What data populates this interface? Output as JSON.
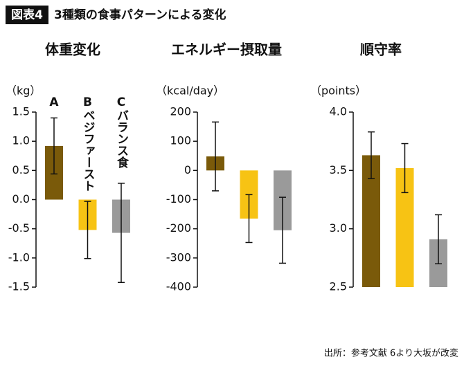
{
  "header": {
    "label": "図表4",
    "title": "3種類の食事パターンによる変化"
  },
  "footer": "出所：参考文献 6より大坂が改変",
  "chart_data": [
    {
      "type": "bar",
      "title": "体重変化",
      "y_label": "（kg）",
      "categories": [
        "A",
        "Bベジファースト",
        "Cバランス食"
      ],
      "colors": [
        "#7a5a0a",
        "#f7c314",
        "#9a9a9a"
      ],
      "values": [
        0.92,
        -0.52,
        -0.57
      ],
      "errors": [
        0.48,
        0.49,
        0.85
      ],
      "ylim": [
        -1.5,
        1.5
      ],
      "yticks": [
        1.5,
        {
          "value": 1,
          "label": "1.0"
        },
        0.5,
        {
          "value": 0,
          "label": "0.0"
        },
        -0.5,
        {
          "value": -1,
          "label": "-1.0"
        },
        -1.5
      ]
    },
    {
      "type": "bar",
      "title": "エネルギー摂取量",
      "y_label": "（kcal/day）",
      "colors": [
        "#7a5a0a",
        "#f7c314",
        "#9a9a9a"
      ],
      "values": [
        48,
        -165,
        -205
      ],
      "errors": [
        118,
        82,
        113
      ],
      "ylim": [
        -400,
        200
      ],
      "yticks": [
        200,
        100,
        0,
        -100,
        -200,
        -300,
        -400
      ]
    },
    {
      "type": "bar",
      "title": "順守率",
      "y_label": "（points）",
      "colors": [
        "#7a5a0a",
        "#f7c314",
        "#9a9a9a"
      ],
      "values": [
        3.63,
        3.52,
        2.91
      ],
      "errors": [
        0.2,
        0.21,
        0.21
      ],
      "ylim": [
        2.5,
        4.0
      ],
      "yticks": [
        {
          "value": 4,
          "label": "4.0"
        },
        3.5,
        {
          "value": 3,
          "label": "3.0"
        },
        2.5
      ]
    }
  ]
}
